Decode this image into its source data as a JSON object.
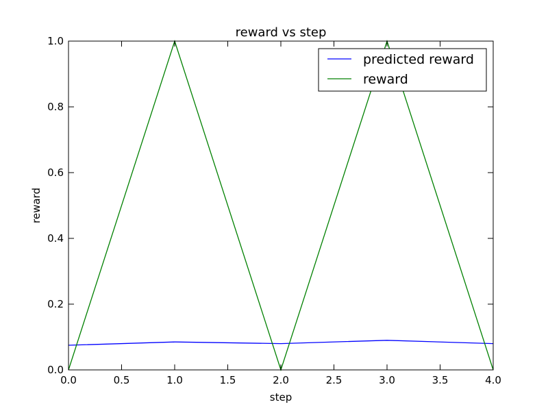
{
  "chart_data": {
    "type": "line",
    "title": "reward vs step",
    "xlabel": "step",
    "ylabel": "reward",
    "xlim": [
      0,
      4
    ],
    "ylim": [
      0,
      1
    ],
    "xticks": [
      "0.0",
      "0.5",
      "1.0",
      "1.5",
      "2.0",
      "2.5",
      "3.0",
      "3.5",
      "4.0"
    ],
    "yticks": [
      "0.0",
      "0.2",
      "0.4",
      "0.6",
      "0.8",
      "1.0"
    ],
    "grid": false,
    "legend_position": "top-right",
    "x": [
      0,
      1,
      2,
      3,
      4
    ],
    "series": [
      {
        "name": "predicted reward",
        "color": "#0000ff",
        "values": [
          0.075,
          0.085,
          0.08,
          0.09,
          0.08
        ]
      },
      {
        "name": "reward",
        "color": "#008000",
        "values": [
          0,
          1,
          0,
          1,
          0
        ]
      }
    ]
  }
}
